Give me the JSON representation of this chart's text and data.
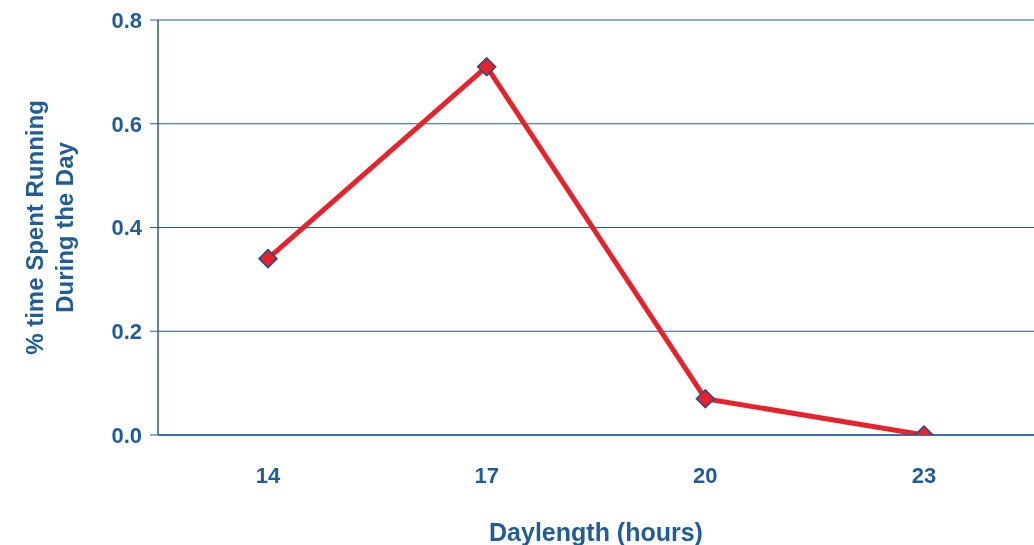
{
  "chart_data": {
    "type": "line",
    "xlabel": "Daylength (hours)",
    "ylabel": "% time Spent Running During the Day",
    "categories": [
      "14",
      "17",
      "20",
      "23"
    ],
    "series": [
      {
        "color": "#e8222b",
        "values": [
          0.34,
          0.71,
          0.07,
          0.0
        ]
      }
    ],
    "ylim": [
      0,
      0.8
    ],
    "yticks": [
      {
        "value": 0,
        "label": "0.0"
      },
      {
        "value": 0.2,
        "label": "0.2"
      },
      {
        "value": 0.4,
        "label": "0.4"
      },
      {
        "value": 0.6,
        "label": "0.6"
      },
      {
        "value": 0.8,
        "label": "0.8"
      }
    ],
    "grid": "y",
    "marker": "diamond",
    "line_style": "solid"
  }
}
